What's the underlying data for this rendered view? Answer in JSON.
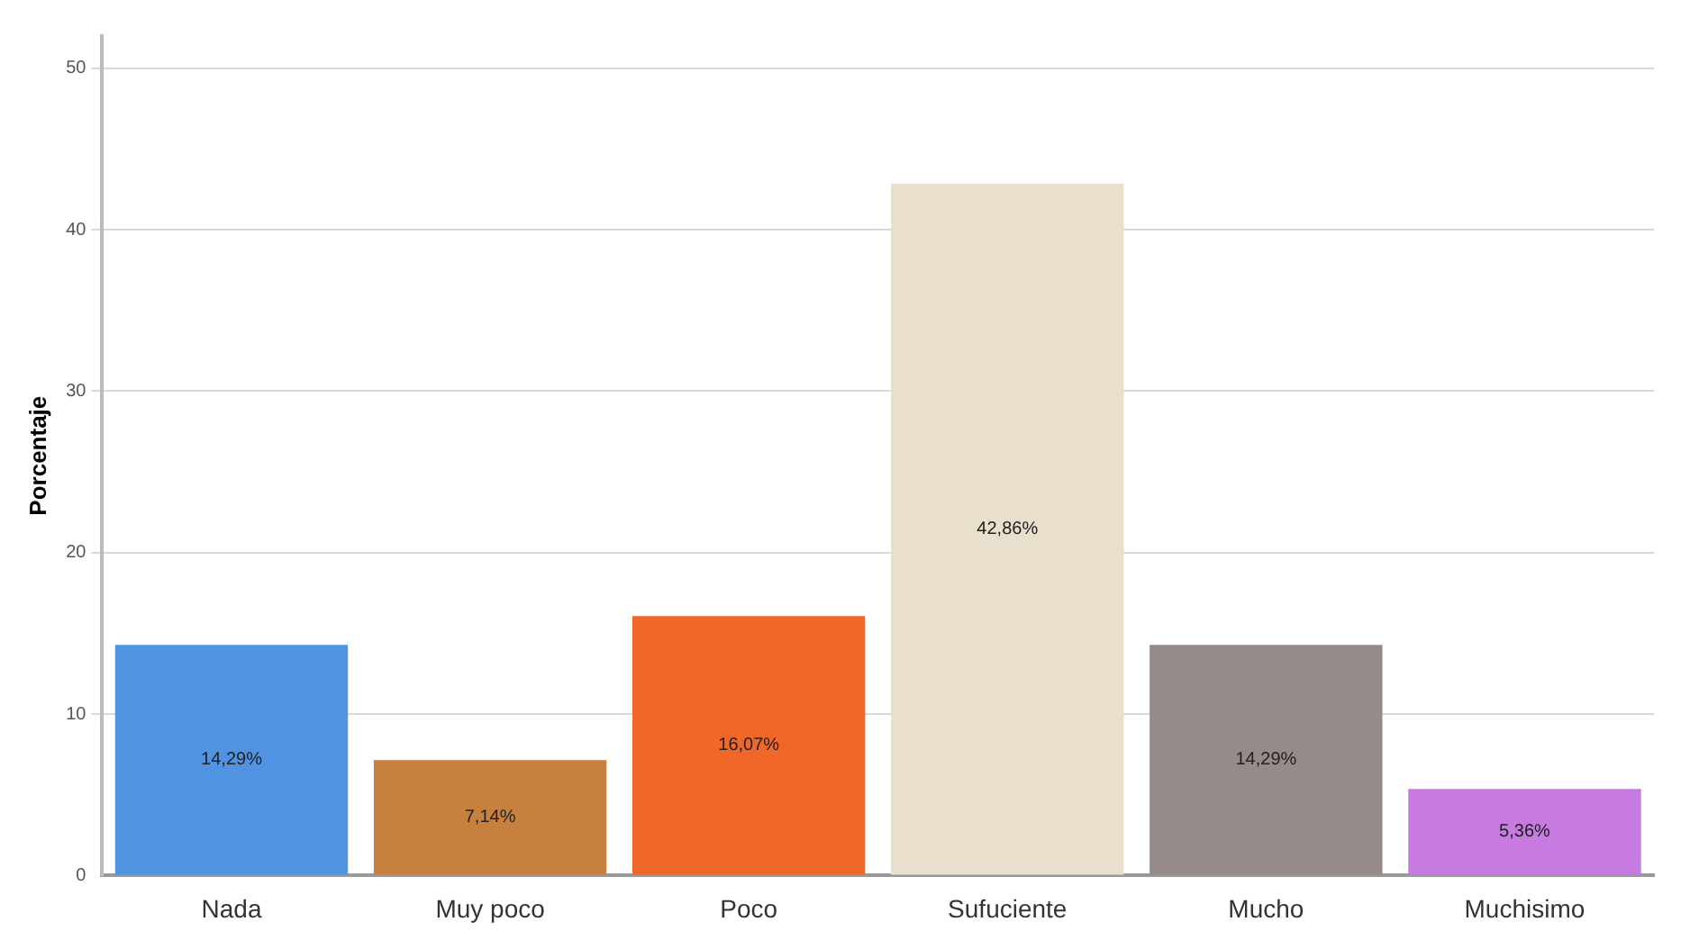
{
  "chart_data": {
    "type": "bar",
    "ylabel": "Porcentaje",
    "categories": [
      "Nada",
      "Muy poco",
      "Poco",
      "Sufuciente",
      "Mucho",
      "Muchisimo"
    ],
    "values": [
      14.29,
      7.14,
      16.07,
      42.86,
      14.29,
      5.36
    ],
    "colors": [
      "#5093e0",
      "#c8803f",
      "#f0672a",
      "#e8e0cc",
      "#958c8a",
      "#c77be0"
    ],
    "value_labels": [
      "14,29%",
      "7,14%",
      "16,07%",
      "42,86%",
      "14,29%",
      "5,36%"
    ],
    "ylim": [
      0,
      52
    ],
    "yticks": [
      0,
      10,
      20,
      30,
      40,
      50
    ],
    "grid": "y",
    "legend": false
  }
}
